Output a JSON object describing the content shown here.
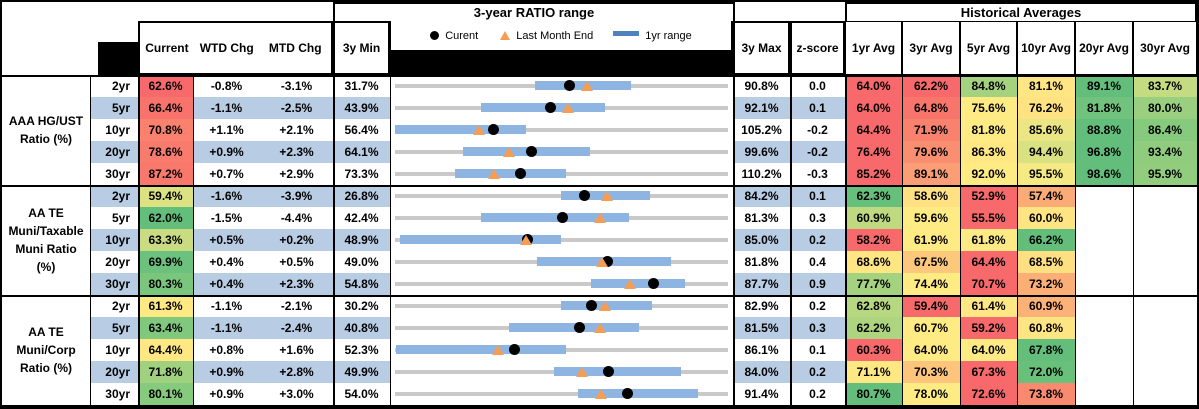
{
  "header": {
    "chart_title": "3-year RATIO range",
    "hist_title": "Historical Averages",
    "col_current": "Current",
    "col_wtd": "WTD Chg",
    "col_mtd": "MTD Chg",
    "col_3y_min": "3y Min",
    "col_3y_max": "3y Max",
    "col_zscore": "z-score",
    "avg_cols": [
      "1yr Avg",
      "3yr Avg",
      "5yr Avg",
      "10yr Avg",
      "20yr Avg",
      "30yr Avg"
    ],
    "legend": {
      "current_label": "Curent",
      "last_month_end_label": "Last Month End",
      "range_label": "1yr range",
      "dot_icon": "black-circle",
      "triangle_icon": "orange-triangle",
      "bar_icon": "blue-dash"
    }
  },
  "colors": {
    "stripe_blue": "#B8CCE4",
    "bar_blue": "#8EB4E2",
    "track_gray": "#C9C9C9",
    "triangle_orange": "#F79C53",
    "legend_bar_blue": "#4F81BD",
    "dot_black": "#000000"
  },
  "groups": [
    {
      "label": "AAA HG/UST\nRatio (%)",
      "rows": [
        {
          "tenor": "2yr",
          "current": 62.6,
          "current_bg": "#F8696B",
          "wtd_chg": "-0.8%",
          "mtd_chg": "-3.1%",
          "min_3y": 31.7,
          "max_3y": 90.8,
          "zscore": 0.0,
          "last_month_end": 65.7,
          "range_1yr": [
            56.5,
            73.5
          ],
          "avgs": [
            {
              "v": 64.0,
              "bg": "#F8696B"
            },
            {
              "v": 62.2,
              "bg": "#F8696B"
            },
            {
              "v": 84.8,
              "bg": "#A5D27F"
            },
            {
              "v": 81.1,
              "bg": "#FFE584"
            },
            {
              "v": 89.1,
              "bg": "#63BE7B"
            },
            {
              "v": 83.7,
              "bg": "#C4DB81"
            }
          ]
        },
        {
          "tenor": "5yr",
          "current": 66.4,
          "current_bg": "#F8736C",
          "wtd_chg": "-1.1%",
          "mtd_chg": "-2.5%",
          "min_3y": 43.9,
          "max_3y": 92.1,
          "zscore": 0.1,
          "last_month_end": 68.9,
          "range_1yr": [
            56.3,
            74.3
          ],
          "avgs": [
            {
              "v": 64.0,
              "bg": "#F8696B"
            },
            {
              "v": 64.8,
              "bg": "#F8756C"
            },
            {
              "v": 75.6,
              "bg": "#FFEB84"
            },
            {
              "v": 76.2,
              "bg": "#FFE383"
            },
            {
              "v": 81.8,
              "bg": "#70C27C"
            },
            {
              "v": 80.0,
              "bg": "#9ACF7F"
            }
          ]
        },
        {
          "tenor": "10yr",
          "current": 70.8,
          "current_bg": "#F9816E",
          "wtd_chg": "+1.1%",
          "mtd_chg": "+2.1%",
          "min_3y": 56.4,
          "max_3y": 105.2,
          "zscore": -0.2,
          "last_month_end": 68.7,
          "range_1yr": [
            56.4,
            75.6
          ],
          "avgs": [
            {
              "v": 64.4,
              "bg": "#F8696B"
            },
            {
              "v": 71.9,
              "bg": "#F9826E"
            },
            {
              "v": 81.8,
              "bg": "#FFEB84"
            },
            {
              "v": 85.6,
              "bg": "#EBE683"
            },
            {
              "v": 88.8,
              "bg": "#63BE7B"
            },
            {
              "v": 86.4,
              "bg": "#86CA7D"
            }
          ]
        },
        {
          "tenor": "20yr",
          "current": 78.6,
          "current_bg": "#F87B6D",
          "wtd_chg": "+0.9%",
          "mtd_chg": "+2.3%",
          "min_3y": 64.1,
          "max_3y": 99.6,
          "zscore": -0.2,
          "last_month_end": 76.3,
          "range_1yr": [
            71.3,
            84.9
          ],
          "avgs": [
            {
              "v": 76.4,
              "bg": "#F8696B"
            },
            {
              "v": 79.6,
              "bg": "#FA8E71"
            },
            {
              "v": 86.3,
              "bg": "#FFE884"
            },
            {
              "v": 94.4,
              "bg": "#DAE182"
            },
            {
              "v": 96.8,
              "bg": "#63BE7B"
            },
            {
              "v": 93.4,
              "bg": "#8FCC7E"
            }
          ]
        },
        {
          "tenor": "30yr",
          "current": 87.2,
          "current_bg": "#F8786C",
          "wtd_chg": "+0.7%",
          "mtd_chg": "+2.9%",
          "min_3y": 73.3,
          "max_3y": 110.2,
          "zscore": -0.3,
          "last_month_end": 84.3,
          "range_1yr": [
            80.0,
            92.3
          ],
          "avgs": [
            {
              "v": 85.2,
              "bg": "#F8696B"
            },
            {
              "v": 89.1,
              "bg": "#FB9D75"
            },
            {
              "v": 92.0,
              "bg": "#FFEB84"
            },
            {
              "v": 95.5,
              "bg": "#F5E984"
            },
            {
              "v": 98.6,
              "bg": "#63BE7B"
            },
            {
              "v": 95.9,
              "bg": "#92CD7E"
            }
          ]
        }
      ]
    },
    {
      "label": "AA TE\nMuni/Taxable\nMuni Ratio\n(%)",
      "rows": [
        {
          "tenor": "2yr",
          "current": 59.4,
          "current_bg": "#DCE182",
          "wtd_chg": "-1.6%",
          "mtd_chg": "-3.9%",
          "min_3y": 26.8,
          "max_3y": 84.2,
          "zscore": 0.1,
          "last_month_end": 63.3,
          "range_1yr": [
            55.4,
            70.7
          ],
          "avgs": [
            {
              "v": 62.3,
              "bg": "#66BF7B"
            },
            {
              "v": 58.6,
              "bg": "#FFE183"
            },
            {
              "v": 52.9,
              "bg": "#F8696B"
            },
            {
              "v": 57.4,
              "bg": "#FBAB76"
            },
            null,
            null
          ]
        },
        {
          "tenor": "5yr",
          "current": 62.0,
          "current_bg": "#63BE7B",
          "wtd_chg": "-1.5%",
          "mtd_chg": "-4.4%",
          "min_3y": 42.4,
          "max_3y": 81.3,
          "zscore": 0.3,
          "last_month_end": 66.4,
          "range_1yr": [
            52.5,
            69.7
          ],
          "avgs": [
            {
              "v": 60.9,
              "bg": "#BED980"
            },
            {
              "v": 59.6,
              "bg": "#FFEB84"
            },
            {
              "v": 55.5,
              "bg": "#F8696B"
            },
            {
              "v": 60.0,
              "bg": "#FFE483"
            },
            null,
            null
          ]
        },
        {
          "tenor": "10yr",
          "current": 63.3,
          "current_bg": "#C9DC81",
          "wtd_chg": "+0.5%",
          "mtd_chg": "+0.2%",
          "min_3y": 48.9,
          "max_3y": 85.0,
          "zscore": 0.2,
          "last_month_end": 63.1,
          "range_1yr": [
            49.4,
            66.9
          ],
          "avgs": [
            {
              "v": 58.2,
              "bg": "#F8696B"
            },
            {
              "v": 61.9,
              "bg": "#FFEB84"
            },
            {
              "v": 61.8,
              "bg": "#FEEA84"
            },
            {
              "v": 66.2,
              "bg": "#63BE7B"
            },
            null,
            null
          ]
        },
        {
          "tenor": "20yr",
          "current": 69.9,
          "current_bg": "#6CC17C",
          "wtd_chg": "+0.4%",
          "mtd_chg": "+0.5%",
          "min_3y": 49.0,
          "max_3y": 81.8,
          "zscore": 0.4,
          "last_month_end": 69.4,
          "range_1yr": [
            63.0,
            76.2
          ],
          "avgs": [
            {
              "v": 68.6,
              "bg": "#FEE683"
            },
            {
              "v": 67.5,
              "bg": "#FCC87C"
            },
            {
              "v": 64.4,
              "bg": "#F8696B"
            },
            {
              "v": 68.5,
              "bg": "#FEDF82"
            },
            null,
            null
          ]
        },
        {
          "tenor": "30yr",
          "current": 80.3,
          "current_bg": "#7AC67D",
          "wtd_chg": "+0.4%",
          "mtd_chg": "+2.3%",
          "min_3y": 54.8,
          "max_3y": 87.7,
          "zscore": 0.9,
          "last_month_end": 78.0,
          "range_1yr": [
            74.2,
            83.5
          ],
          "avgs": [
            {
              "v": 77.7,
              "bg": "#A5D27F"
            },
            {
              "v": 74.4,
              "bg": "#FFEB84"
            },
            {
              "v": 70.7,
              "bg": "#F8696B"
            },
            {
              "v": 73.2,
              "bg": "#FBAE76"
            },
            null,
            null
          ]
        }
      ]
    },
    {
      "label": "AA TE\nMuni/Corp\nRatio (%)",
      "rows": [
        {
          "tenor": "2yr",
          "current": 61.3,
          "current_bg": "#FFE983",
          "wtd_chg": "-1.1%",
          "mtd_chg": "-2.1%",
          "min_3y": 30.2,
          "max_3y": 82.9,
          "zscore": 0.2,
          "last_month_end": 63.4,
          "range_1yr": [
            56.5,
            70.8
          ],
          "avgs": [
            {
              "v": 62.8,
              "bg": "#B7D780"
            },
            {
              "v": 59.4,
              "bg": "#F8696B"
            },
            {
              "v": 61.4,
              "bg": "#FFE884"
            },
            {
              "v": 60.9,
              "bg": "#FBB177"
            },
            null,
            null
          ]
        },
        {
          "tenor": "5yr",
          "current": 63.4,
          "current_bg": "#80C87E",
          "wtd_chg": "-1.1%",
          "mtd_chg": "-2.4%",
          "min_3y": 40.8,
          "max_3y": 81.5,
          "zscore": 0.3,
          "last_month_end": 65.8,
          "range_1yr": [
            54.7,
            70.6
          ],
          "avgs": [
            {
              "v": 62.2,
              "bg": "#ADD47F"
            },
            {
              "v": 60.7,
              "bg": "#FFEB84"
            },
            {
              "v": 59.2,
              "bg": "#F8696B"
            },
            {
              "v": 60.8,
              "bg": "#FEE583"
            },
            null,
            null
          ]
        },
        {
          "tenor": "10yr",
          "current": 64.4,
          "current_bg": "#FFE883",
          "wtd_chg": "+0.8%",
          "mtd_chg": "+1.6%",
          "min_3y": 52.3,
          "max_3y": 86.1,
          "zscore": 0.1,
          "last_month_end": 62.8,
          "range_1yr": [
            52.4,
            69.7
          ],
          "avgs": [
            {
              "v": 60.3,
              "bg": "#F8696B"
            },
            {
              "v": 64.0,
              "bg": "#FFEB84"
            },
            {
              "v": 64.0,
              "bg": "#FFEB84"
            },
            {
              "v": 67.8,
              "bg": "#63BE7B"
            },
            null,
            null
          ]
        },
        {
          "tenor": "20yr",
          "current": 71.8,
          "current_bg": "#9FD17F",
          "wtd_chg": "+0.9%",
          "mtd_chg": "+2.8%",
          "min_3y": 49.9,
          "max_3y": 84.0,
          "zscore": 0.2,
          "last_month_end": 69.0,
          "range_1yr": [
            66.2,
            79.2
          ],
          "avgs": [
            {
              "v": 71.1,
              "bg": "#FEE883"
            },
            {
              "v": 70.3,
              "bg": "#FCC57B"
            },
            {
              "v": 67.3,
              "bg": "#F8696B"
            },
            {
              "v": 72.0,
              "bg": "#68C07B"
            },
            null,
            null
          ]
        },
        {
          "tenor": "30yr",
          "current": 80.1,
          "current_bg": "#86CA7E",
          "wtd_chg": "+0.9%",
          "mtd_chg": "+3.0%",
          "min_3y": 54.0,
          "max_3y": 91.4,
          "zscore": 0.2,
          "last_month_end": 77.1,
          "range_1yr": [
            74.6,
            88.0
          ],
          "avgs": [
            {
              "v": 80.7,
              "bg": "#63BE7B"
            },
            {
              "v": 78.0,
              "bg": "#FFEB84"
            },
            {
              "v": 72.6,
              "bg": "#F8696B"
            },
            {
              "v": 73.8,
              "bg": "#F98A70"
            },
            null,
            null
          ]
        }
      ]
    }
  ],
  "chart_data": {
    "type": "table",
    "title": "3-year RATIO range",
    "legend": [
      "Curent",
      "Last Month End",
      "1yr range"
    ],
    "note": "Each row is a bullet chart: gray track spans 3y min to 3y max; blue bar is 1yr range; black dot is current; orange triangle is last month end.",
    "rows": [
      {
        "group": "AAA HG/UST Ratio (%)",
        "tenor": "2yr",
        "range_3y": [
          31.7,
          90.8
        ],
        "range_1yr": [
          56.5,
          73.5
        ],
        "current": 62.6,
        "last_month_end": 65.7
      },
      {
        "group": "AAA HG/UST Ratio (%)",
        "tenor": "5yr",
        "range_3y": [
          43.9,
          92.1
        ],
        "range_1yr": [
          56.3,
          74.3
        ],
        "current": 66.4,
        "last_month_end": 68.9
      },
      {
        "group": "AAA HG/UST Ratio (%)",
        "tenor": "10yr",
        "range_3y": [
          56.4,
          105.2
        ],
        "range_1yr": [
          56.4,
          75.6
        ],
        "current": 70.8,
        "last_month_end": 68.7
      },
      {
        "group": "AAA HG/UST Ratio (%)",
        "tenor": "20yr",
        "range_3y": [
          64.1,
          99.6
        ],
        "range_1yr": [
          71.3,
          84.9
        ],
        "current": 78.6,
        "last_month_end": 76.3
      },
      {
        "group": "AAA HG/UST Ratio (%)",
        "tenor": "30yr",
        "range_3y": [
          73.3,
          110.2
        ],
        "range_1yr": [
          80.0,
          92.3
        ],
        "current": 87.2,
        "last_month_end": 84.3
      },
      {
        "group": "AA TE Muni/Taxable Muni Ratio (%)",
        "tenor": "2yr",
        "range_3y": [
          26.8,
          84.2
        ],
        "range_1yr": [
          55.4,
          70.7
        ],
        "current": 59.4,
        "last_month_end": 63.3
      },
      {
        "group": "AA TE Muni/Taxable Muni Ratio (%)",
        "tenor": "5yr",
        "range_3y": [
          42.4,
          81.3
        ],
        "range_1yr": [
          52.5,
          69.7
        ],
        "current": 62.0,
        "last_month_end": 66.4
      },
      {
        "group": "AA TE Muni/Taxable Muni Ratio (%)",
        "tenor": "10yr",
        "range_3y": [
          48.9,
          85.0
        ],
        "range_1yr": [
          49.4,
          66.9
        ],
        "current": 63.3,
        "last_month_end": 63.1
      },
      {
        "group": "AA TE Muni/Taxable Muni Ratio (%)",
        "tenor": "20yr",
        "range_3y": [
          49.0,
          81.8
        ],
        "range_1yr": [
          63.0,
          76.2
        ],
        "current": 69.9,
        "last_month_end": 69.4
      },
      {
        "group": "AA TE Muni/Taxable Muni Ratio (%)",
        "tenor": "30yr",
        "range_3y": [
          54.8,
          87.7
        ],
        "range_1yr": [
          74.2,
          83.5
        ],
        "current": 80.3,
        "last_month_end": 78.0
      },
      {
        "group": "AA TE Muni/Corp Ratio (%)",
        "tenor": "2yr",
        "range_3y": [
          30.2,
          82.9
        ],
        "range_1yr": [
          56.5,
          70.8
        ],
        "current": 61.3,
        "last_month_end": 63.4
      },
      {
        "group": "AA TE Muni/Corp Ratio (%)",
        "tenor": "5yr",
        "range_3y": [
          40.8,
          81.5
        ],
        "range_1yr": [
          54.7,
          70.6
        ],
        "current": 63.4,
        "last_month_end": 65.8
      },
      {
        "group": "AA TE Muni/Corp Ratio (%)",
        "tenor": "10yr",
        "range_3y": [
          52.3,
          86.1
        ],
        "range_1yr": [
          52.4,
          69.7
        ],
        "current": 64.4,
        "last_month_end": 62.8
      },
      {
        "group": "AA TE Muni/Corp Ratio (%)",
        "tenor": "20yr",
        "range_3y": [
          49.9,
          84.0
        ],
        "range_1yr": [
          66.2,
          79.2
        ],
        "current": 71.8,
        "last_month_end": 69.0
      },
      {
        "group": "AA TE Muni/Corp Ratio (%)",
        "tenor": "30yr",
        "range_3y": [
          54.0,
          91.4
        ],
        "range_1yr": [
          74.6,
          88.0
        ],
        "current": 80.1,
        "last_month_end": 77.1
      }
    ]
  }
}
